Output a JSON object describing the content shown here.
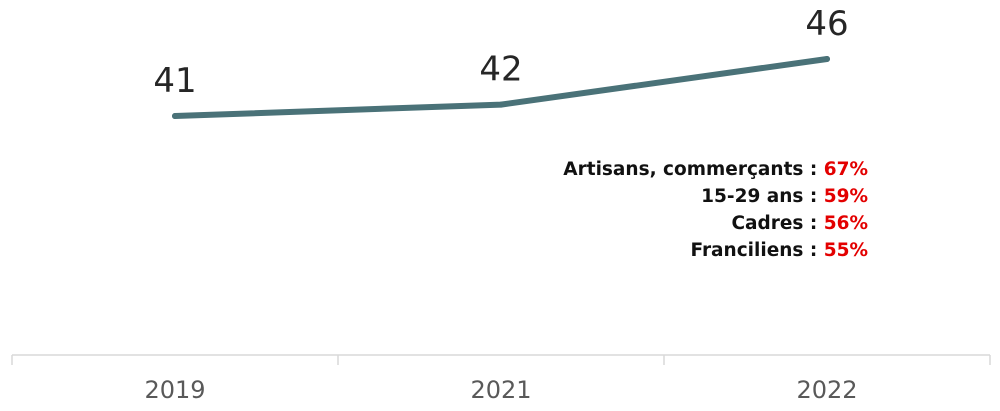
{
  "chart_data": {
    "type": "line",
    "categories": [
      "2019",
      "2021",
      "2022"
    ],
    "series": [
      {
        "values": [
          41,
          42,
          46
        ],
        "color": "#4a7278"
      }
    ],
    "data_labels": [
      "41",
      "42",
      "46"
    ],
    "title": "",
    "xlabel": "",
    "ylabel": "",
    "grid": false,
    "legend": "none"
  },
  "annotations": [
    {
      "label": "Artisans, commerçants : ",
      "value": "67%"
    },
    {
      "label": "15-29 ans : ",
      "value": "59%"
    },
    {
      "label": "Cadres : ",
      "value": "56%"
    },
    {
      "label": "Franciliens : ",
      "value": "55%"
    }
  ],
  "colors": {
    "line": "#4a7278",
    "highlight": "#e30000",
    "axis": "#d9d9d9"
  }
}
